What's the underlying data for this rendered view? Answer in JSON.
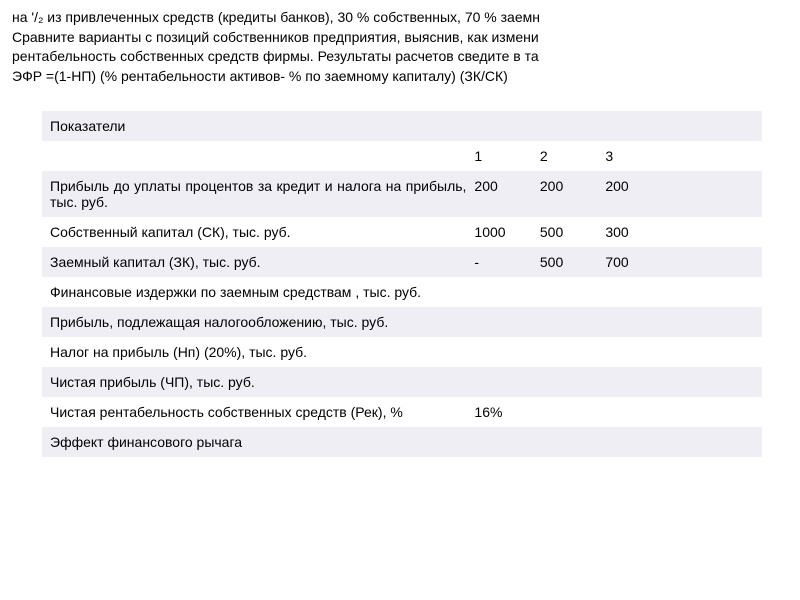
{
  "intro": {
    "line1": "на '/₂ из привлеченных средств (кредиты банков), 30 % собственных, 70 % заемн",
    "line2": "Сравните варианты с позиций собственников предприятия, выяснив, как измени",
    "line3": "рентабельность собственных средств фирмы. Результаты расчетов сведите в та",
    "line4": "ЭФР =(1-НП) (% рентабельности активов- % по заемному капиталу) (ЗК/СК)"
  },
  "table": {
    "header_label": "Показатели",
    "col1": "1",
    "col2": "2",
    "col3": "3",
    "rows": [
      {
        "label": "Прибыль до уплаты процентов за кредит и налога на прибыль, тыс. руб.",
        "v1": "200",
        "v2": "200",
        "v3": "200"
      },
      {
        "label": "Собственный капитал (СК), тыс. руб.",
        "v1": "1000",
        "v2": "500",
        "v3": "300"
      },
      {
        "label": "Заемный капитал (ЗК), тыс. руб.",
        "v1": "-",
        "v2": "500",
        "v3": "700"
      },
      {
        "label": "Финансовые издержки по заемным средствам , тыс. руб.",
        "v1": "",
        "v2": "",
        "v3": ""
      },
      {
        "label": "Прибыль, подлежащая налогообложению, тыс. руб.",
        "v1": "",
        "v2": "",
        "v3": ""
      },
      {
        "label": "Налог на прибыль (Нп) (20%), тыс. руб.",
        "v1": "",
        "v2": "",
        "v3": ""
      },
      {
        "label": "Чистая прибыль (ЧП), тыс. руб.",
        "v1": "",
        "v2": "",
        "v3": ""
      },
      {
        "label": "Чистая рентабельность собственных средств (Рек), %",
        "v1": "16%",
        "v2": "",
        "v3": ""
      },
      {
        "label": "Эффект финансового рычага",
        "v1": "",
        "v2": "",
        "v3": ""
      }
    ]
  },
  "styling": {
    "alt_row_bg": "#eeeef4",
    "row_bg": "#ffffff",
    "text_color": "#000000",
    "font_size_body": 14
  }
}
